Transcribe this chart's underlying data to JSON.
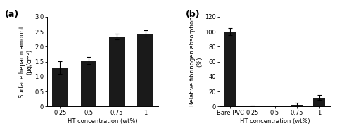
{
  "chart_a": {
    "categories": [
      "0.25",
      "0.5",
      "0.75",
      "1"
    ],
    "values": [
      1.3,
      1.53,
      2.34,
      2.44
    ],
    "errors": [
      0.22,
      0.12,
      0.1,
      0.1
    ],
    "ylabel": "Surface heparin amount\n(μg/cm²)",
    "xlabel": "HT concentration (wt%)",
    "ylim": [
      0,
      3.0
    ],
    "yticks": [
      0,
      0.5,
      1.0,
      1.5,
      2.0,
      2.5,
      3.0
    ],
    "label": "(a)"
  },
  "chart_b": {
    "categories": [
      "Bare PVC",
      "0.25",
      "0.5",
      "0.75",
      "1"
    ],
    "values": [
      100.0,
      0.5,
      0.3,
      2.5,
      12.0
    ],
    "errors": [
      5.0,
      0.5,
      0.3,
      2.0,
      3.0
    ],
    "ylabel": "Relative fibrinogen absorption\n(%)",
    "xlabel": "HT concentration (wt%)",
    "ylim": [
      0,
      120
    ],
    "yticks": [
      0,
      20,
      40,
      60,
      80,
      100,
      120
    ],
    "label": "(b)"
  },
  "bar_color": "#1a1a1a",
  "bar_width": 0.55,
  "background_color": "#ffffff",
  "ylabel_fontsize": 6,
  "xlabel_fontsize": 6,
  "tick_fontsize": 6,
  "panel_label_fontsize": 9
}
